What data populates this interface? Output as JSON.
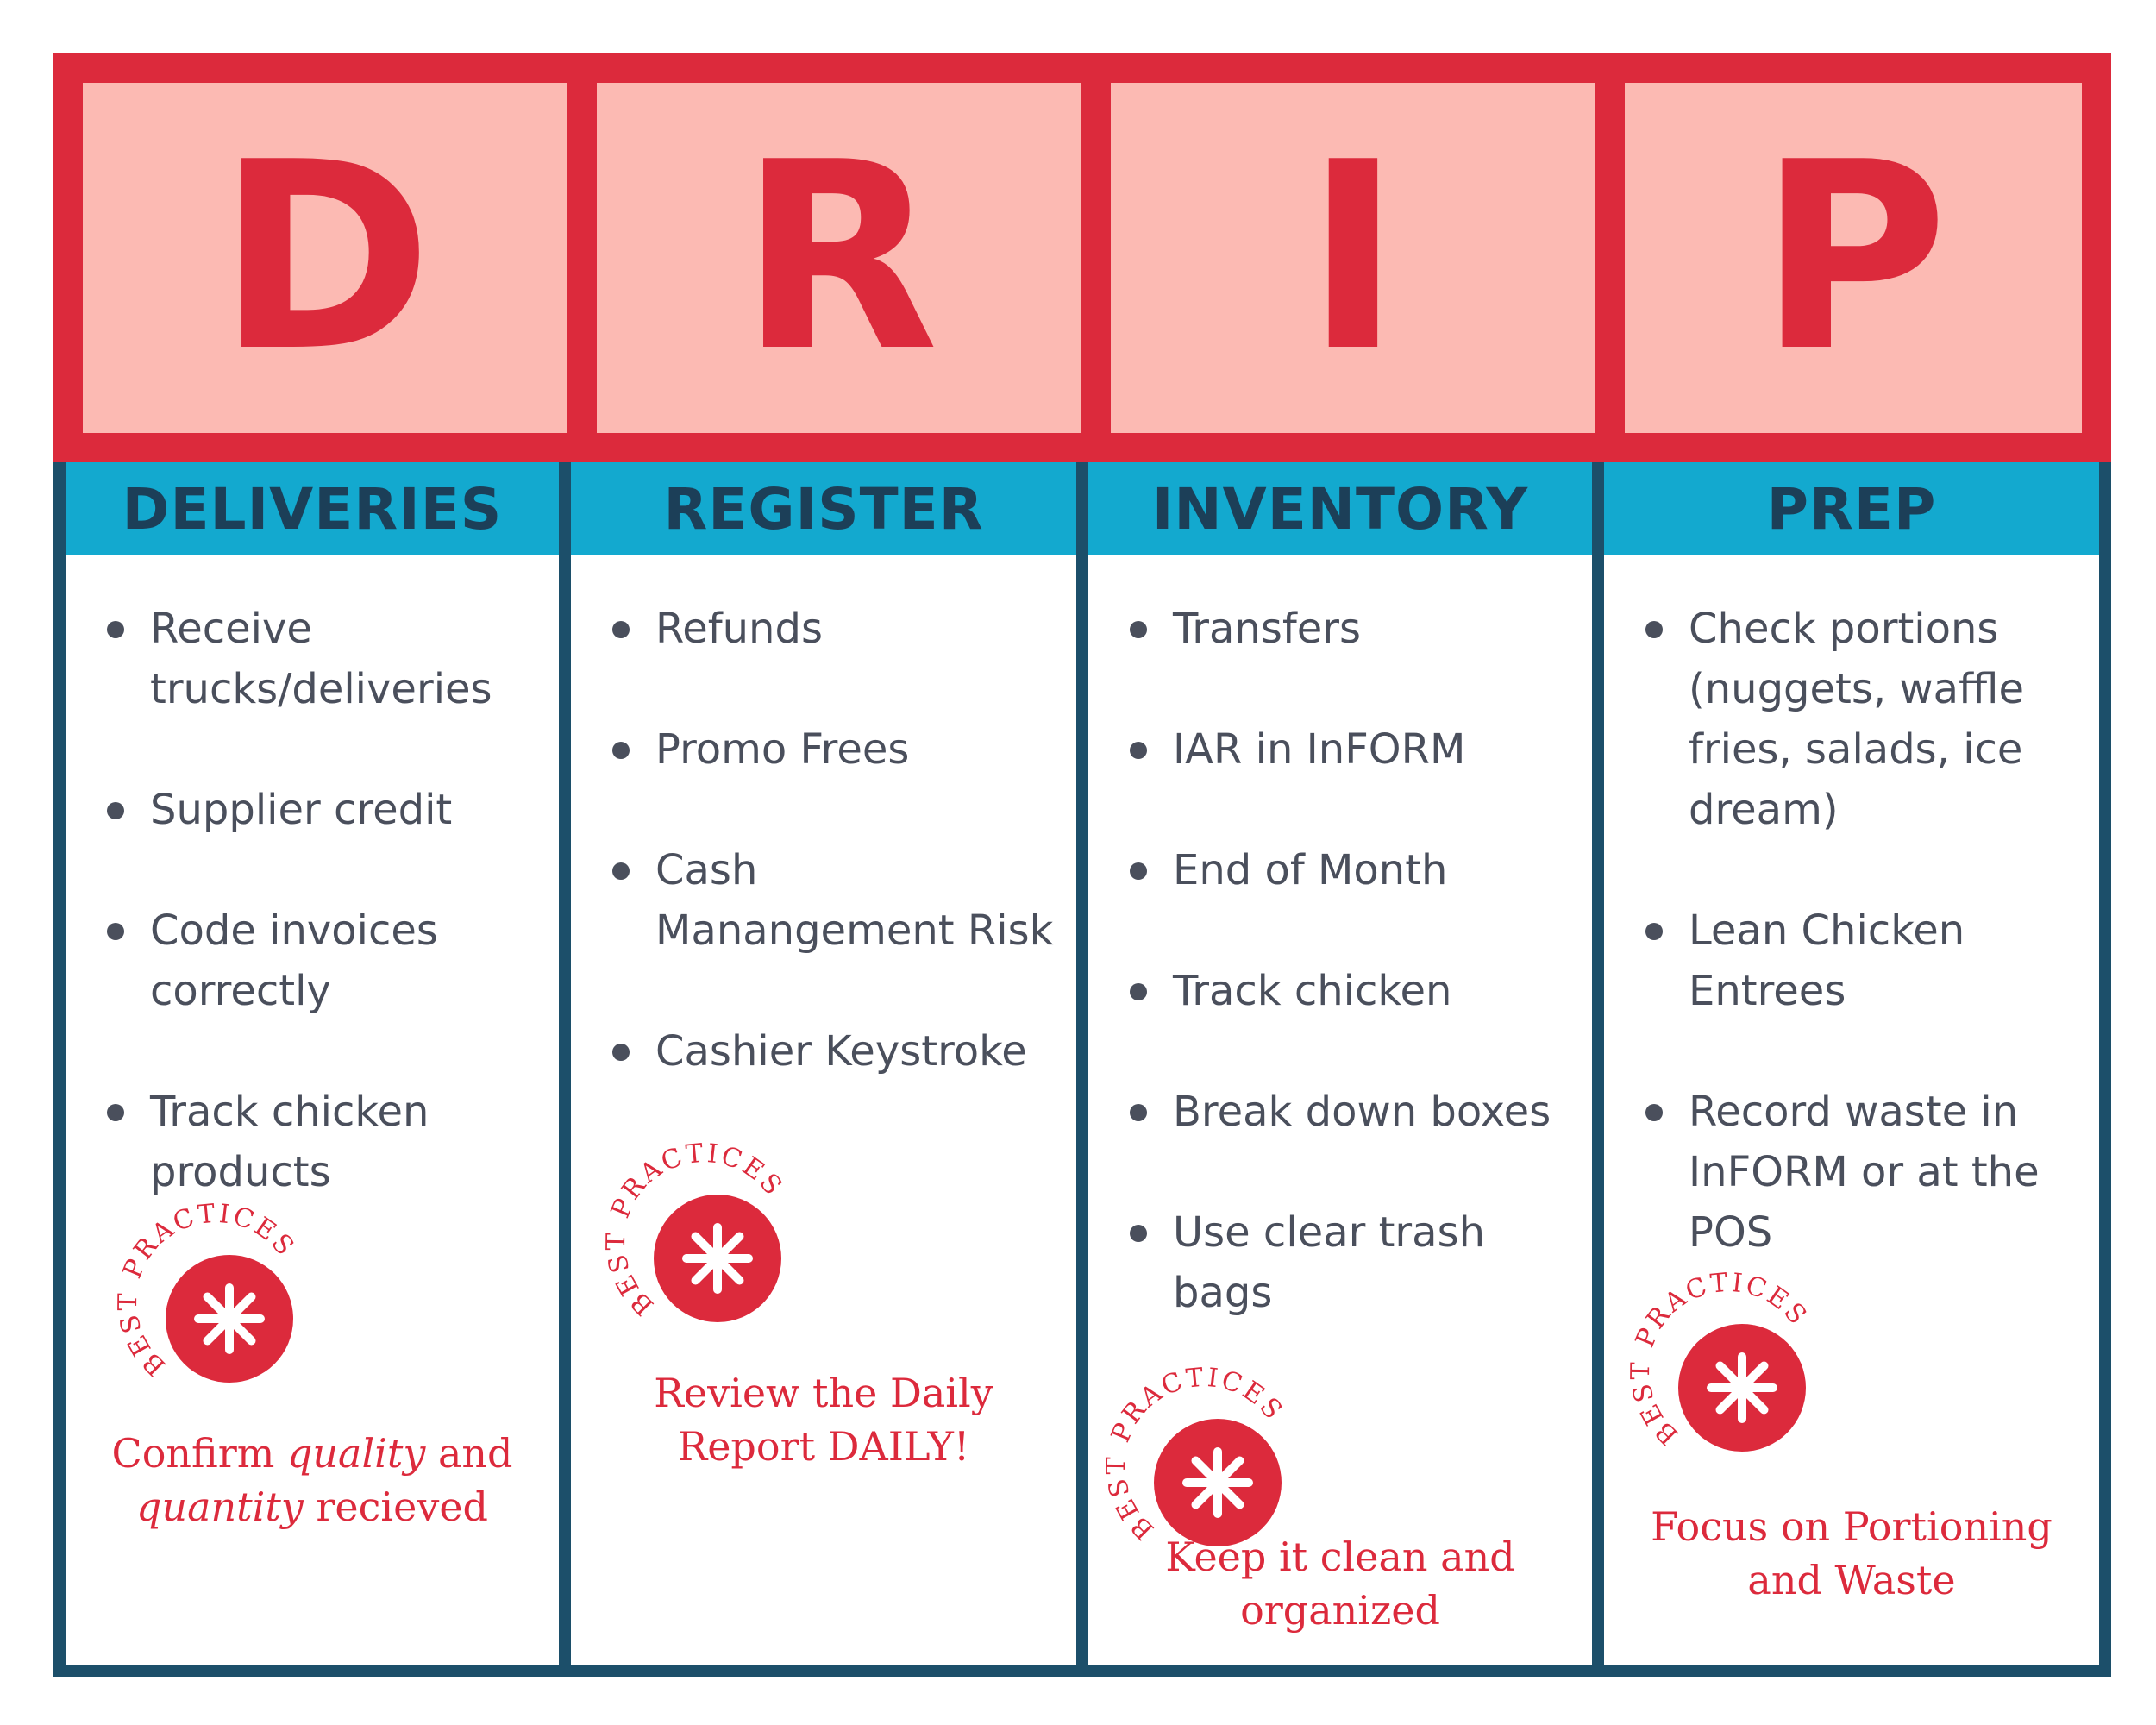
{
  "letters": [
    "D",
    "R",
    "I",
    "P"
  ],
  "badge_text": "BEST PRACTICES",
  "columns": [
    {
      "title": "DELIVERIES",
      "items": [
        "Receive trucks/deliveries",
        "Supplier credit",
        "Code invoices correctly",
        "Track chicken products"
      ],
      "tip": {
        "p1": "Confirm ",
        "em1": "quality",
        "p2": " and ",
        "em2": "quantity",
        "p3": " recieved"
      }
    },
    {
      "title": "REGISTER",
      "items": [
        "Refunds",
        "Promo Frees",
        "Cash Manangement Risk",
        "Cashier Keystroke"
      ],
      "tip": {
        "text": "Review the Daily Report DAILY!"
      }
    },
    {
      "title": "INVENTORY",
      "items": [
        "Transfers",
        "IAR in InFORM",
        "End of Month",
        "Track chicken",
        "Break down boxes",
        "Use clear trash bags"
      ],
      "tip": {
        "text": "Keep it clean and organized"
      }
    },
    {
      "title": "PREP",
      "items": [
        "Check portions (nuggets, waffle fries, salads, ice dream)",
        "Lean Chicken Entrees",
        "Record waste in InFORM or at the POS"
      ],
      "tip": {
        "text": "Focus on Portioning and Waste"
      }
    }
  ],
  "colors": {
    "red": "#dc2a3c",
    "pink": "#fcbab3",
    "blue_header": "#13a9cf",
    "navy_border": "#1c4f6a",
    "heading_text": "#1c3f58",
    "body_text": "#4a4f5c"
  }
}
